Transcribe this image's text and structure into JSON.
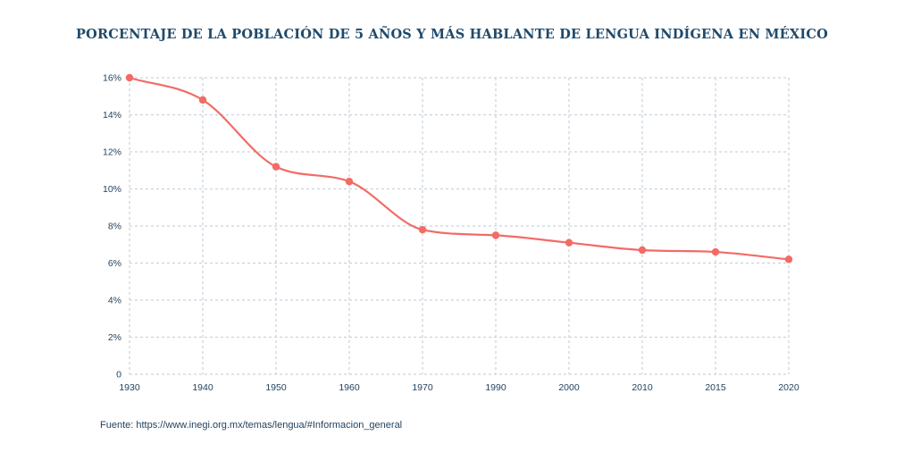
{
  "chart_data": {
    "type": "line",
    "title": "PORCENTAJE DE LA POBLACIÓN DE 5 AÑOS Y MÁS HABLANTE DE LENGUA INDÍGENA EN MÉXICO",
    "xlabel": "",
    "ylabel": "",
    "categories": [
      "1930",
      "1940",
      "1950",
      "1960",
      "1970",
      "1990",
      "2000",
      "2010",
      "2015",
      "2020"
    ],
    "series": [
      {
        "values": [
          16.0,
          14.8,
          11.2,
          10.4,
          7.8,
          7.5,
          7.1,
          6.7,
          6.6,
          6.2
        ]
      }
    ],
    "yticks": [
      "0",
      "2%",
      "4%",
      "6%",
      "8%",
      "10%",
      "12%",
      "14%",
      "16%"
    ],
    "ylim": [
      0,
      16
    ],
    "grid": true,
    "line_color": "#f26b66",
    "grid_color": "#c9d3dc"
  },
  "source": "Fuente: https://www.inegi.org.mx/temas/lengua/#Informacion_general"
}
